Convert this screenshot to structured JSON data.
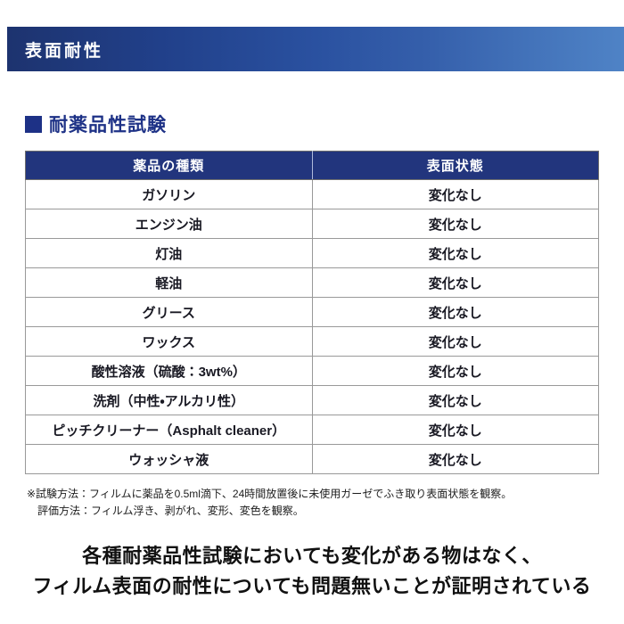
{
  "banner": {
    "title": "表面耐性"
  },
  "section": {
    "title": "耐薬品性試験"
  },
  "table": {
    "headers": [
      "薬品の種類",
      "表面状態"
    ],
    "rows": [
      {
        "chemical": "ガソリン",
        "state": "変化なし"
      },
      {
        "chemical": "エンジン油",
        "state": "変化なし"
      },
      {
        "chemical": "灯油",
        "state": "変化なし"
      },
      {
        "chemical": "軽油",
        "state": "変化なし"
      },
      {
        "chemical": "グリース",
        "state": "変化なし"
      },
      {
        "chemical": "ワックス",
        "state": "変化なし"
      },
      {
        "chemical": "酸性溶液（硫酸：3wt%）",
        "state": "変化なし"
      },
      {
        "chemical": "洗剤（中性・アルカリ性）",
        "state": "変化なし"
      },
      {
        "chemical": "ピッチクリーナー（Asphalt cleaner）",
        "state": "変化なし"
      },
      {
        "chemical": "ウォッシャ液",
        "state": "変化なし"
      }
    ]
  },
  "footnotes": {
    "line1": "※試験方法：フィルムに薬品を0.5ml滴下、24時間放置後に未使用ガーゼでふき取り表面状態を観察。",
    "line2": "評価方法：フィルム浮き、剥がれ、変形、変色を観察。"
  },
  "conclusion": {
    "line1": "各種耐薬品性試験においても変化がある物はなく、",
    "line2": "フィルム表面の耐性についても問題無いことが証明されている"
  },
  "colors": {
    "banner_gradient_start": "#1d336f",
    "banner_gradient_end": "#4f83c6",
    "accent_navy": "#1d3186",
    "table_header_bg": "#22357d",
    "body_text": "#191923"
  }
}
